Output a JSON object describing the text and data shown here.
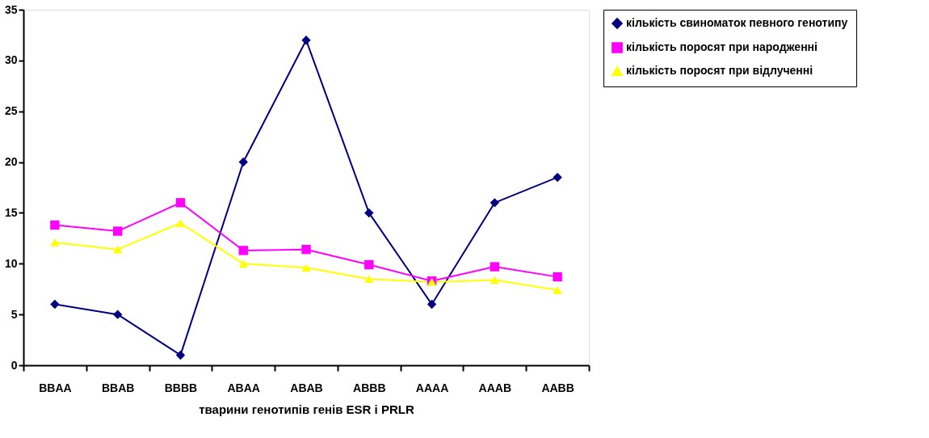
{
  "chart_data": {
    "type": "line",
    "xlabel": "тварини генотипів генів ESR і PRLR",
    "categories": [
      "BBAA",
      "BBAB",
      "BBBB",
      "ABAA",
      "ABAB",
      "ABBB",
      "AAAA",
      "AAAB",
      "AABB"
    ],
    "series": [
      {
        "name": "кількість свиноматок певного генотипу",
        "color": "#000080",
        "marker": "diamond",
        "values": [
          6,
          5,
          1,
          20,
          32,
          15,
          6,
          16,
          18.5
        ]
      },
      {
        "name": "кількість поросят при народженні",
        "color": "#ff00ff",
        "marker": "square",
        "values": [
          13.8,
          13.2,
          16,
          11.3,
          11.4,
          9.9,
          8.3,
          9.7,
          8.7
        ]
      },
      {
        "name": "кількість поросят при відлученні",
        "color": "#ffff00",
        "marker": "triangle",
        "values": [
          12.1,
          11.4,
          14,
          10,
          9.6,
          8.5,
          8.2,
          8.4,
          7.4
        ]
      }
    ],
    "ylim": [
      0,
      35
    ],
    "yticks": [
      0,
      5,
      10,
      15,
      20,
      25,
      30,
      35
    ],
    "grid": false,
    "legend": "right",
    "line_style": "solid"
  }
}
